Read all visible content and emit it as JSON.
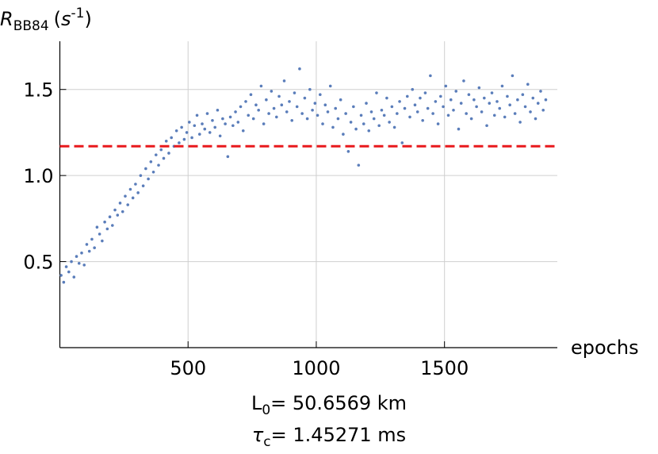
{
  "chart_data": {
    "type": "scatter",
    "ylabel": {
      "symbol": "R",
      "subscript": "BB84",
      "open": "(",
      "unit": "s",
      "superscript": "-1",
      "close": ")"
    },
    "xlabel": "epochs",
    "annotations": [
      {
        "symbol": "L",
        "subscript": "0",
        "text": "= 50.6569 km"
      },
      {
        "symbol": "τ",
        "subscript": "c",
        "text": "= 1.45271 ms"
      }
    ],
    "xlim": [
      0,
      1940
    ],
    "ylim": [
      0,
      1.78
    ],
    "xticks": [
      500,
      1000,
      1500
    ],
    "yticks": [
      0.5,
      {
        "value": 1,
        "label": "1.0"
      },
      1.5
    ],
    "grid": true,
    "hline": {
      "value": 1.17,
      "color": "#e8191c"
    },
    "series": [
      {
        "color": "#5a7dba",
        "x": [
          5,
          15,
          25,
          35,
          45,
          55,
          65,
          75,
          85,
          95,
          105,
          115,
          125,
          135,
          145,
          155,
          165,
          175,
          185,
          195,
          205,
          215,
          225,
          235,
          245,
          255,
          265,
          275,
          285,
          295,
          305,
          315,
          325,
          335,
          345,
          355,
          365,
          375,
          385,
          395,
          405,
          415,
          425,
          435,
          445,
          455,
          465,
          475,
          485,
          495,
          505,
          515,
          525,
          535,
          545,
          555,
          565,
          575,
          585,
          595,
          605,
          615,
          625,
          635,
          645,
          655,
          665,
          675,
          685,
          695,
          705,
          715,
          725,
          735,
          745,
          755,
          765,
          775,
          785,
          795,
          805,
          815,
          825,
          835,
          845,
          855,
          865,
          875,
          885,
          895,
          905,
          915,
          925,
          935,
          945,
          955,
          965,
          975,
          985,
          995,
          1005,
          1015,
          1025,
          1035,
          1045,
          1055,
          1065,
          1075,
          1085,
          1095,
          1105,
          1115,
          1125,
          1135,
          1145,
          1155,
          1165,
          1175,
          1185,
          1195,
          1205,
          1215,
          1225,
          1235,
          1245,
          1255,
          1265,
          1275,
          1285,
          1295,
          1305,
          1315,
          1325,
          1335,
          1345,
          1355,
          1365,
          1375,
          1385,
          1395,
          1405,
          1415,
          1425,
          1435,
          1445,
          1455,
          1465,
          1475,
          1485,
          1495,
          1505,
          1515,
          1525,
          1535,
          1545,
          1555,
          1565,
          1575,
          1585,
          1595,
          1605,
          1615,
          1625,
          1635,
          1645,
          1655,
          1665,
          1675,
          1685,
          1695,
          1705,
          1715,
          1725,
          1735,
          1745,
          1755,
          1765,
          1775,
          1785,
          1795,
          1805,
          1815,
          1825,
          1835,
          1845,
          1855,
          1865,
          1875,
          1885,
          1895
        ],
        "values": [
          0.42,
          0.38,
          0.47,
          0.44,
          0.5,
          0.41,
          0.53,
          0.49,
          0.55,
          0.48,
          0.6,
          0.56,
          0.63,
          0.58,
          0.7,
          0.66,
          0.62,
          0.73,
          0.69,
          0.76,
          0.71,
          0.8,
          0.77,
          0.84,
          0.79,
          0.88,
          0.83,
          0.92,
          0.87,
          0.95,
          0.9,
          1.0,
          0.94,
          1.04,
          0.98,
          1.08,
          1.02,
          1.12,
          1.06,
          1.15,
          1.1,
          1.2,
          1.13,
          1.22,
          1.17,
          1.26,
          1.19,
          1.28,
          1.21,
          1.25,
          1.31,
          1.22,
          1.29,
          1.35,
          1.24,
          1.3,
          1.27,
          1.36,
          1.25,
          1.32,
          1.28,
          1.38,
          1.23,
          1.33,
          1.3,
          1.11,
          1.34,
          1.29,
          1.37,
          1.31,
          1.4,
          1.26,
          1.43,
          1.35,
          1.47,
          1.33,
          1.41,
          1.38,
          1.52,
          1.3,
          1.44,
          1.36,
          1.49,
          1.39,
          1.34,
          1.46,
          1.41,
          1.55,
          1.37,
          1.43,
          1.32,
          1.48,
          1.4,
          1.62,
          1.36,
          1.45,
          1.33,
          1.5,
          1.38,
          1.42,
          1.35,
          1.47,
          1.3,
          1.41,
          1.37,
          1.52,
          1.28,
          1.39,
          1.33,
          1.44,
          1.24,
          1.36,
          1.14,
          1.31,
          1.4,
          1.27,
          1.06,
          1.35,
          1.3,
          1.42,
          1.26,
          1.37,
          1.33,
          1.48,
          1.29,
          1.38,
          1.35,
          1.45,
          1.31,
          1.4,
          1.28,
          1.36,
          1.43,
          1.19,
          1.39,
          1.46,
          1.34,
          1.5,
          1.41,
          1.37,
          1.45,
          1.32,
          1.48,
          1.39,
          1.58,
          1.36,
          1.43,
          1.3,
          1.46,
          1.4,
          1.52,
          1.35,
          1.44,
          1.38,
          1.49,
          1.27,
          1.42,
          1.55,
          1.36,
          1.47,
          1.33,
          1.44,
          1.4,
          1.51,
          1.37,
          1.45,
          1.29,
          1.42,
          1.48,
          1.35,
          1.43,
          1.39,
          1.52,
          1.34,
          1.46,
          1.41,
          1.58,
          1.36,
          1.44,
          1.31,
          1.47,
          1.4,
          1.53,
          1.37,
          1.45,
          1.33,
          1.42,
          1.49,
          1.38,
          1.44
        ]
      }
    ]
  }
}
